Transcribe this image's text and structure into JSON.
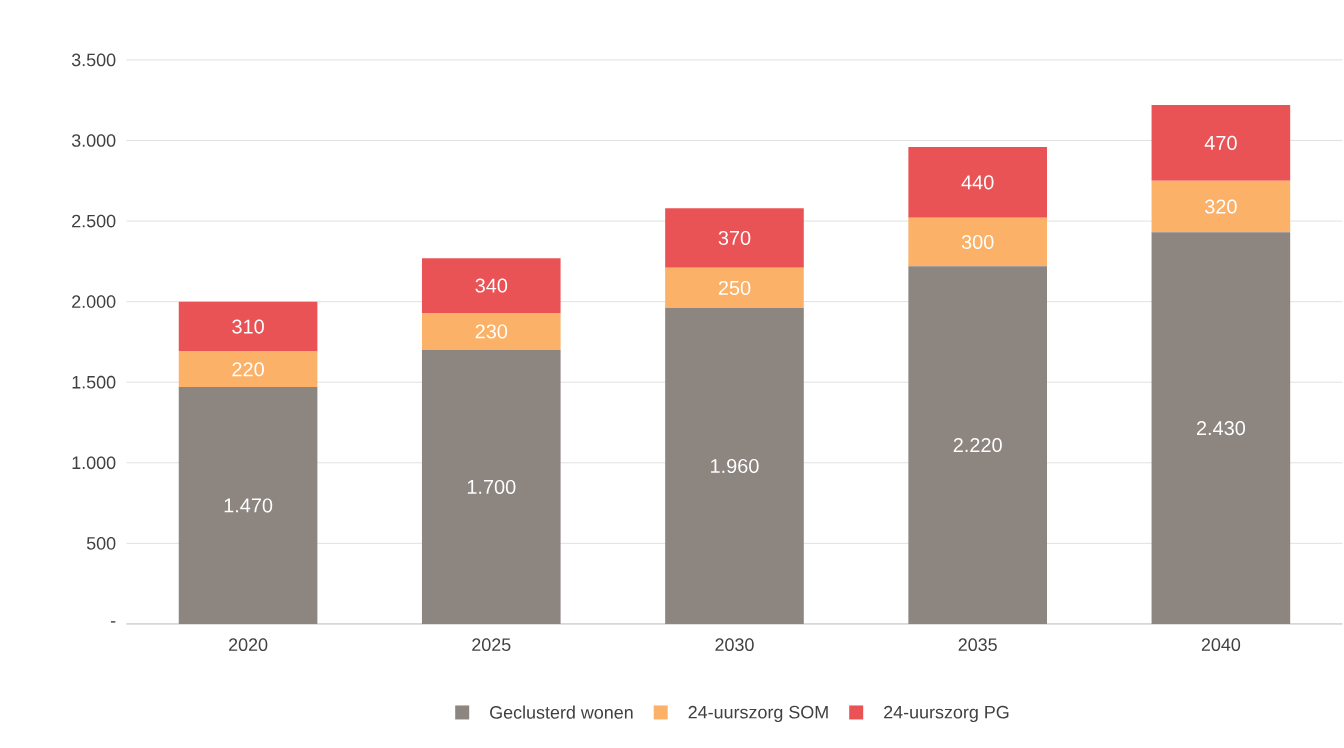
{
  "chart_data": {
    "type": "bar",
    "stacked": true,
    "categories": [
      "2020",
      "2025",
      "2030",
      "2035",
      "2040"
    ],
    "series": [
      {
        "name": "Geclusterd wonen",
        "color": "#8c8580",
        "values": [
          1470,
          1700,
          1960,
          2220,
          2430
        ],
        "value_labels": [
          "1.470",
          "1.700",
          "1.960",
          "2.220",
          "2.430"
        ]
      },
      {
        "name": "24-uurszorg SOM",
        "color": "#fbb268",
        "values": [
          220,
          230,
          250,
          300,
          320
        ],
        "value_labels": [
          "220",
          "230",
          "250",
          "300",
          "320"
        ]
      },
      {
        "name": "24-uurszorg PG",
        "color": "#e95356",
        "values": [
          310,
          340,
          370,
          440,
          470
        ],
        "value_labels": [
          "310",
          "340",
          "370",
          "440",
          "470"
        ]
      }
    ],
    "ylim": [
      0,
      3500
    ],
    "yticks": [
      {
        "value": 0,
        "label": "-"
      },
      500,
      {
        "value": 1000,
        "label": "1.000"
      },
      {
        "value": 1500,
        "label": "1.500"
      },
      {
        "value": 2000,
        "label": "2.000"
      },
      {
        "value": 2500,
        "label": "2.500"
      },
      {
        "value": 3000,
        "label": "3.000"
      },
      {
        "value": 3500,
        "label": "3.500"
      }
    ],
    "grid": "y",
    "legend": "bottom"
  }
}
